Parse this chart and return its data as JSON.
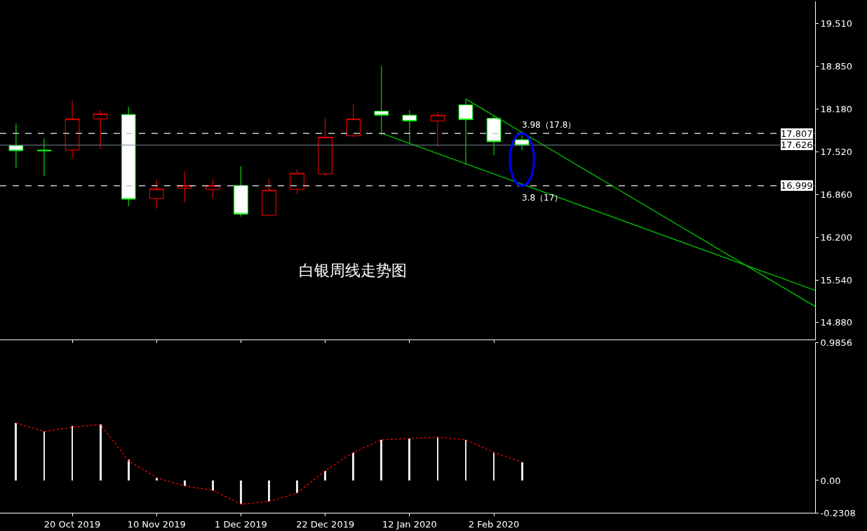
{
  "chart_data": [
    {
      "type": "candlestick",
      "title": "白银周线走势图",
      "x": [
        "2019-10-06",
        "2019-10-13",
        "2019-10-20",
        "2019-10-27",
        "2019-11-03",
        "2019-11-10",
        "2019-11-17",
        "2019-11-24",
        "2019-12-01",
        "2019-12-08",
        "2019-12-15",
        "2019-12-22",
        "2019-12-29",
        "2020-01-05",
        "2020-01-12",
        "2020-01-19",
        "2020-01-26",
        "2020-02-02",
        "2020-02-09"
      ],
      "ohlc": [
        [
          17.62,
          17.96,
          17.27,
          17.54
        ],
        [
          17.55,
          17.73,
          17.15,
          17.54
        ],
        [
          17.55,
          18.32,
          17.42,
          18.03
        ],
        [
          18.03,
          18.17,
          17.57,
          18.11
        ],
        [
          18.1,
          18.22,
          16.68,
          16.79
        ],
        [
          16.8,
          17.09,
          16.64,
          16.95
        ],
        [
          16.96,
          17.22,
          16.74,
          17.0
        ],
        [
          16.94,
          17.1,
          16.8,
          17.0
        ],
        [
          17.0,
          17.3,
          16.52,
          16.56
        ],
        [
          16.54,
          17.11,
          16.52,
          16.93
        ],
        [
          16.94,
          17.25,
          16.87,
          17.19
        ],
        [
          17.18,
          18.05,
          17.15,
          17.75
        ],
        [
          17.77,
          18.27,
          17.75,
          18.03
        ],
        [
          18.15,
          18.85,
          17.78,
          18.09
        ],
        [
          18.09,
          18.17,
          17.66,
          18.0
        ],
        [
          18.0,
          18.14,
          17.6,
          18.09
        ],
        [
          18.25,
          18.34,
          17.32,
          18.02
        ],
        [
          18.04,
          18.08,
          17.47,
          17.68
        ],
        [
          17.71,
          17.78,
          17.55,
          17.626
        ]
      ],
      "colors": [
        "#00ff00",
        "#00ff00",
        "#ff0000",
        "#ff0000",
        "#00ff00",
        "#ff0000",
        "#ff0000",
        "#ff0000",
        "#00ff00",
        "#ff0000",
        "#ff0000",
        "#ff0000",
        "#ff0000",
        "#00ff00",
        "#00ff00",
        "#ff0000",
        "#00ff00",
        "#00ff00",
        "#00ff00"
      ],
      "series": [
        {
          "type": "line",
          "color": "#00c000",
          "x": [
            "2020-01-05",
            "2020-04-22"
          ],
          "values": [
            17.81,
            15.38
          ]
        },
        {
          "type": "line",
          "color": "#00c000",
          "x": [
            "2020-01-26",
            "2020-04-22"
          ],
          "values": [
            18.34,
            15.13
          ]
        }
      ],
      "xlim": [
        "2019-10-02",
        "2020-04-22"
      ],
      "xticks": [
        {
          "value": "2019-10-20",
          "label": null
        },
        {
          "value": "2019-11-10",
          "label": null
        },
        {
          "value": "2019-12-01",
          "label": null
        },
        {
          "value": "2019-12-22",
          "label": null
        },
        {
          "value": "2020-01-12",
          "label": null
        },
        {
          "value": "2020-02-02",
          "label": null
        }
      ],
      "ylim": [
        14.62,
        19.85
      ],
      "yticks": [
        {
          "value": 14.88,
          "label": "14.880"
        },
        {
          "value": 15.54,
          "label": "15.540"
        },
        {
          "value": 16.2,
          "label": "16.200"
        },
        {
          "value": 16.86,
          "label": "16.860"
        },
        {
          "value": 17.52,
          "label": "17.520"
        },
        {
          "value": 18.18,
          "label": "18.180"
        },
        {
          "value": 18.85,
          "label": "18.850"
        },
        {
          "value": 19.51,
          "label": "19.510"
        }
      ],
      "tick_labels": "y",
      "ref_lines": [
        {
          "axis": "y",
          "value": 17.807,
          "label": "17.807",
          "color": "#c8c8c8",
          "line_style": "dashed"
        },
        {
          "axis": "y",
          "value": 16.999,
          "label": "16.999",
          "color": "#c8c8c8",
          "line_style": "dashed"
        },
        {
          "axis": "y",
          "value": 17.626,
          "label": "17.626",
          "color": "#778899",
          "line_style": "solid"
        }
      ],
      "annotations": [
        {
          "text": "3.98（17.8）",
          "x": "2020-02-09",
          "y": 17.8
        },
        {
          "text": "3.8（17）",
          "x": "2020-02-09",
          "y": 17.0
        }
      ]
    },
    {
      "type": "bar",
      "x": [
        "2019-10-06",
        "2019-10-13",
        "2019-10-20",
        "2019-10-27",
        "2019-11-03",
        "2019-11-10",
        "2019-11-17",
        "2019-11-24",
        "2019-12-01",
        "2019-12-08",
        "2019-12-15",
        "2019-12-22",
        "2019-12-29",
        "2020-01-05",
        "2020-01-12",
        "2020-01-19",
        "2020-01-26",
        "2020-02-02",
        "2020-02-09"
      ],
      "series": [
        {
          "type": "bar",
          "color": "#e8e8e8",
          "values": [
            0.41,
            0.35,
            0.39,
            0.4,
            0.15,
            0.02,
            -0.04,
            -0.07,
            -0.17,
            -0.15,
            -0.09,
            0.07,
            0.2,
            0.29,
            0.3,
            0.31,
            0.29,
            0.2,
            0.13
          ]
        },
        {
          "type": "line",
          "color": "#ff0000",
          "line_style": "dotted",
          "values": [
            0.41,
            0.35,
            0.38,
            0.4,
            0.14,
            0.02,
            -0.04,
            -0.07,
            -0.17,
            -0.15,
            -0.09,
            0.07,
            0.2,
            0.29,
            0.3,
            0.31,
            0.29,
            0.2,
            0.13
          ]
        }
      ],
      "xlim": [
        "2019-10-02",
        "2020-04-22"
      ],
      "xticks": [
        {
          "value": "2019-10-20",
          "label": "20 Oct 2019"
        },
        {
          "value": "2019-11-10",
          "label": "10 Nov 2019"
        },
        {
          "value": "2019-12-01",
          "label": "1 Dec 2019"
        },
        {
          "value": "2019-12-22",
          "label": "22 Dec 2019"
        },
        {
          "value": "2020-01-12",
          "label": "12 Jan 2020"
        },
        {
          "value": "2020-02-02",
          "label": "2 Feb 2020"
        }
      ],
      "ylim": [
        -0.2308,
        0.9856
      ],
      "yticks": [
        -0.2308,
        {
          "value": 0,
          "label": "0.00"
        },
        0.9856
      ]
    }
  ]
}
